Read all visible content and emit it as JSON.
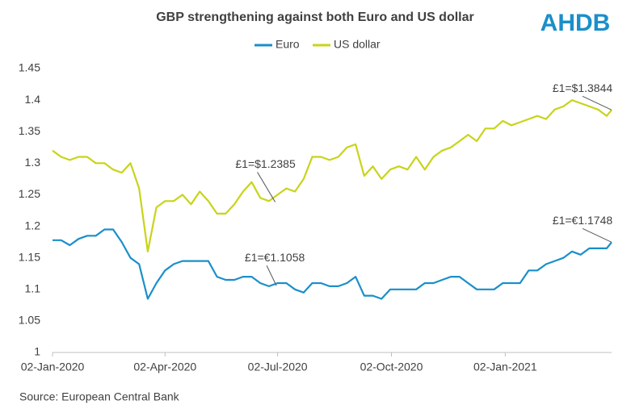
{
  "chart_data": {
    "type": "line",
    "title": "GBP strengthening against both Euro and US dollar",
    "logo": "AHDB",
    "source": "Source: European Central Bank",
    "x": [
      "2020-01-02",
      "2020-01-09",
      "2020-01-16",
      "2020-01-23",
      "2020-01-30",
      "2020-02-06",
      "2020-02-13",
      "2020-02-20",
      "2020-02-27",
      "2020-03-05",
      "2020-03-12",
      "2020-03-19",
      "2020-03-26",
      "2020-04-02",
      "2020-04-09",
      "2020-04-16",
      "2020-04-23",
      "2020-04-30",
      "2020-05-07",
      "2020-05-14",
      "2020-05-21",
      "2020-05-28",
      "2020-06-04",
      "2020-06-11",
      "2020-06-18",
      "2020-06-25",
      "2020-07-02",
      "2020-07-09",
      "2020-07-16",
      "2020-07-23",
      "2020-07-30",
      "2020-08-06",
      "2020-08-13",
      "2020-08-20",
      "2020-08-27",
      "2020-09-03",
      "2020-09-10",
      "2020-09-17",
      "2020-09-24",
      "2020-10-01",
      "2020-10-08",
      "2020-10-15",
      "2020-10-22",
      "2020-10-29",
      "2020-11-05",
      "2020-11-12",
      "2020-11-19",
      "2020-11-26",
      "2020-12-03",
      "2020-12-10",
      "2020-12-17",
      "2020-12-24",
      "2020-12-31",
      "2021-01-07",
      "2021-01-14",
      "2021-01-21",
      "2021-01-28",
      "2021-02-04",
      "2021-02-11",
      "2021-02-18",
      "2021-02-25",
      "2021-03-04",
      "2021-03-11",
      "2021-03-18",
      "2021-03-25",
      "2021-03-29"
    ],
    "series": [
      {
        "name": "Euro",
        "color": "#1a8fc9",
        "values": [
          1.178,
          1.178,
          1.17,
          1.18,
          1.185,
          1.185,
          1.195,
          1.195,
          1.175,
          1.15,
          1.14,
          1.085,
          1.11,
          1.13,
          1.14,
          1.145,
          1.145,
          1.145,
          1.145,
          1.12,
          1.115,
          1.115,
          1.12,
          1.12,
          1.11,
          1.105,
          1.11,
          1.11,
          1.1,
          1.095,
          1.11,
          1.11,
          1.105,
          1.105,
          1.11,
          1.12,
          1.09,
          1.09,
          1.085,
          1.1,
          1.1,
          1.1,
          1.1,
          1.11,
          1.11,
          1.115,
          1.12,
          1.12,
          1.11,
          1.1,
          1.1,
          1.1,
          1.11,
          1.11,
          1.11,
          1.13,
          1.13,
          1.14,
          1.145,
          1.15,
          1.16,
          1.155,
          1.165,
          1.165,
          1.165,
          1.1748
        ]
      },
      {
        "name": "US dollar",
        "color": "#c8d419",
        "values": [
          1.32,
          1.31,
          1.305,
          1.31,
          1.31,
          1.3,
          1.3,
          1.29,
          1.285,
          1.3,
          1.26,
          1.16,
          1.23,
          1.24,
          1.24,
          1.25,
          1.235,
          1.255,
          1.24,
          1.22,
          1.22,
          1.235,
          1.255,
          1.27,
          1.245,
          1.24,
          1.25,
          1.26,
          1.255,
          1.275,
          1.31,
          1.31,
          1.305,
          1.31,
          1.325,
          1.33,
          1.28,
          1.295,
          1.275,
          1.29,
          1.295,
          1.29,
          1.31,
          1.29,
          1.31,
          1.32,
          1.325,
          1.335,
          1.345,
          1.335,
          1.355,
          1.355,
          1.367,
          1.36,
          1.365,
          1.37,
          1.375,
          1.37,
          1.385,
          1.39,
          1.4,
          1.395,
          1.39,
          1.385,
          1.375,
          1.3844
        ]
      }
    ],
    "annotations": [
      {
        "text": "£1=$1.2385",
        "x": "2020-06-30",
        "value": 1.2385
      },
      {
        "text": "£1=€1.1058",
        "x": "2020-07-01",
        "value": 1.1058
      },
      {
        "text": "£1=$1.3844",
        "x": "2021-03-29",
        "value": 1.3844
      },
      {
        "text": "£1=€1.1748",
        "x": "2021-03-29",
        "value": 1.1748
      }
    ],
    "xlim": [
      "2020-01-02",
      "2021-03-29"
    ],
    "xticks": [
      {
        "value": "2020-01-02",
        "label": "02-Jan-2020"
      },
      {
        "value": "2020-04-02",
        "label": "02-Apr-2020"
      },
      {
        "value": "2020-07-02",
        "label": "02-Jul-2020"
      },
      {
        "value": "2020-10-02",
        "label": "02-Oct-2020"
      },
      {
        "value": "2021-01-02",
        "label": "02-Jan-2021"
      }
    ],
    "ylim": [
      1,
      1.45
    ],
    "yticks": [
      1,
      1.05,
      1.1,
      1.15,
      1.2,
      1.25,
      1.3,
      1.35,
      1.4,
      1.45
    ],
    "grid": false
  }
}
